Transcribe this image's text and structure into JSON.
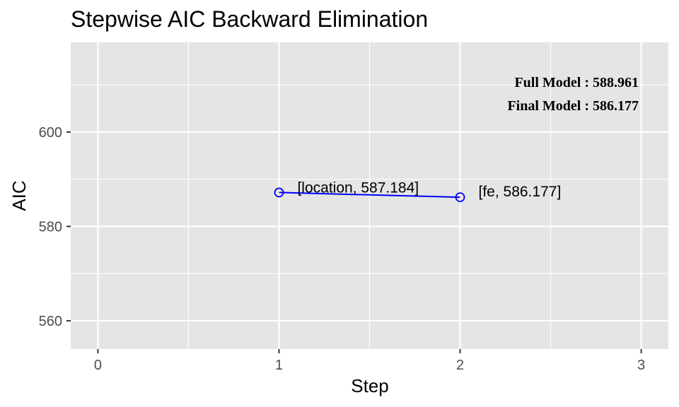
{
  "chart_data": {
    "type": "line",
    "title": "Stepwise AIC Backward Elimination",
    "xlabel": "Step",
    "ylabel": "AIC",
    "xlim": [
      -0.15,
      3.15
    ],
    "ylim": [
      554,
      619
    ],
    "x_ticks": [
      0,
      1,
      2,
      3
    ],
    "y_ticks": [
      560,
      580,
      600
    ],
    "grid": true,
    "series": [
      {
        "color": "#0000ff",
        "points": [
          {
            "x": 1,
            "y": 587.184,
            "label": "[location, 587.184]"
          },
          {
            "x": 2,
            "y": 586.177,
            "label": "[fe, 586.177]"
          }
        ]
      }
    ],
    "annotations": {
      "full_model": "Full Model  : 588.961",
      "final_model": "Final Model : 586.177"
    },
    "annotation_placement": "top-right"
  },
  "colors": {
    "panel": "#e5e5e5",
    "grid_major": "#ffffff",
    "line": "#0000ff",
    "tick_text": "#4d4d4d"
  }
}
